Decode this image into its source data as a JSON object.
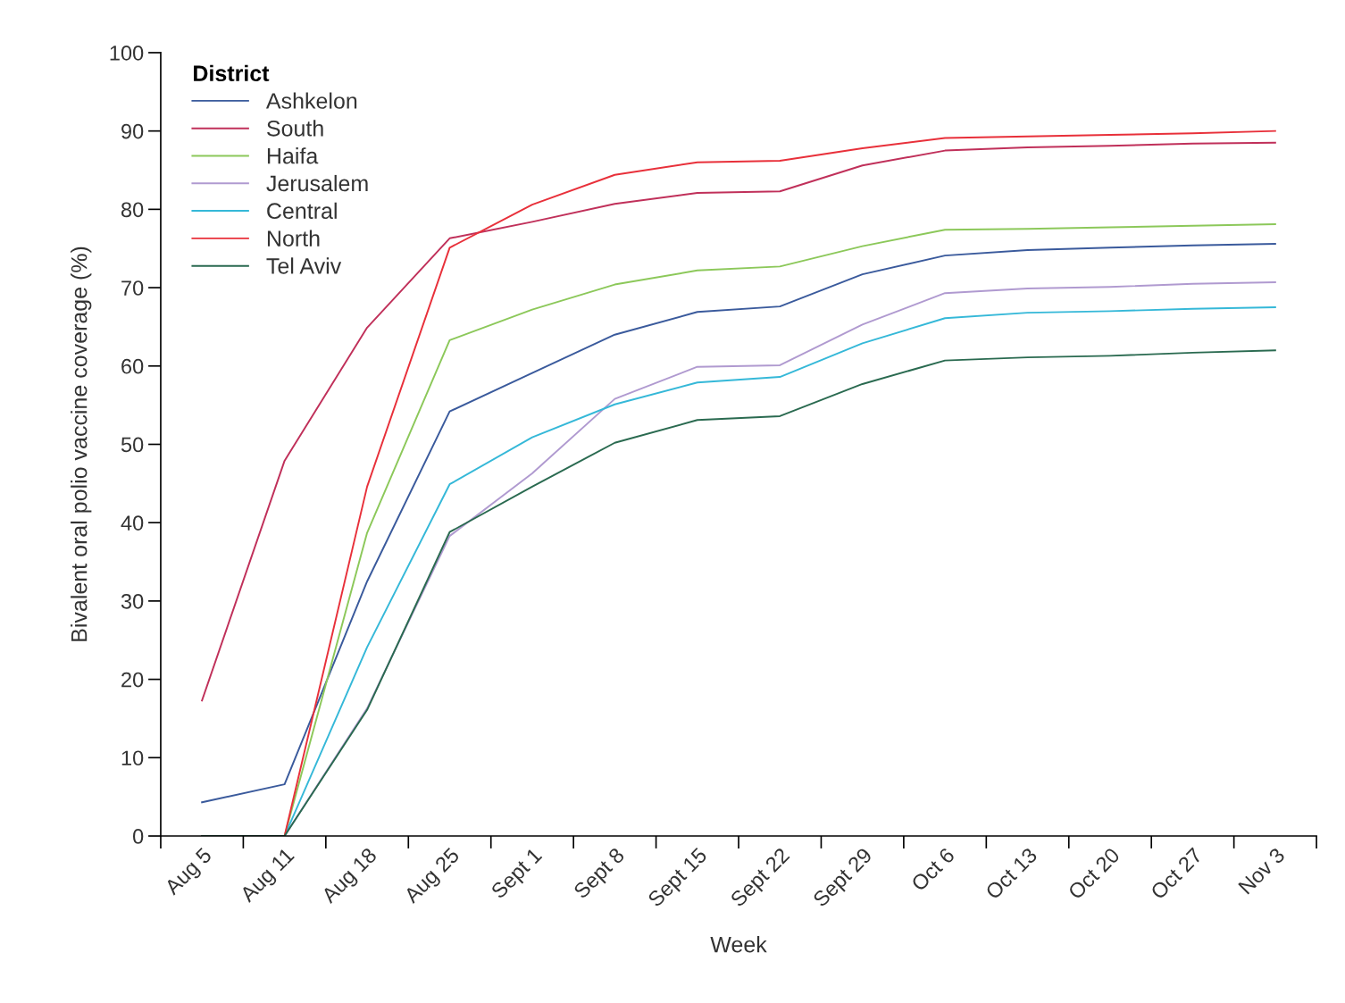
{
  "chart_data": {
    "type": "line",
    "xlabel": "Week",
    "ylabel": "Bivalent oral polio vaccine coverage (%)",
    "legend_title": "District",
    "legend": "top left",
    "grid": false,
    "marker": "none",
    "line_style": "solid",
    "categories": [
      "Aug 5",
      "Aug 11",
      "Aug 18",
      "Aug 25",
      "Sept 1",
      "Sept 8",
      "Sept 15",
      "Sept 22",
      "Sept 29",
      "Oct 6",
      "Oct 13",
      "Oct 20",
      "Oct 27",
      "Nov 3"
    ],
    "ylim": [
      0,
      100
    ],
    "yticks": [
      0,
      10,
      20,
      30,
      40,
      50,
      60,
      70,
      80,
      90,
      100
    ],
    "series": [
      {
        "name": "Ashkelon",
        "color": "#3a5a9c",
        "values": [
          4.3,
          6.6,
          32.5,
          54.2,
          59.1,
          64.0,
          66.9,
          67.6,
          71.7,
          74.1,
          74.8,
          75.1,
          75.4,
          75.6
        ]
      },
      {
        "name": "South",
        "color": "#c0305a",
        "values": [
          17.3,
          47.9,
          64.9,
          76.3,
          78.4,
          80.7,
          82.1,
          82.3,
          85.6,
          87.5,
          87.9,
          88.1,
          88.4,
          88.5
        ]
      },
      {
        "name": "Haifa",
        "color": "#8cc85a",
        "values": [
          0,
          0,
          38.7,
          63.3,
          67.2,
          70.4,
          72.2,
          72.7,
          75.3,
          77.4,
          77.5,
          77.7,
          77.9,
          78.1
        ]
      },
      {
        "name": "Jerusalem",
        "color": "#b09ad0",
        "values": [
          0,
          0,
          16.3,
          38.3,
          46.3,
          55.8,
          59.9,
          60.1,
          65.3,
          69.3,
          69.9,
          70.1,
          70.5,
          70.7
        ]
      },
      {
        "name": "Central",
        "color": "#35b8d8",
        "values": [
          0,
          0,
          24.1,
          44.9,
          50.9,
          55.1,
          57.9,
          58.6,
          62.9,
          66.1,
          66.8,
          67.0,
          67.3,
          67.5
        ]
      },
      {
        "name": "North",
        "color": "#e8303a",
        "values": [
          0,
          0,
          44.6,
          75.1,
          80.6,
          84.4,
          86.0,
          86.2,
          87.8,
          89.1,
          89.3,
          89.5,
          89.7,
          90.0
        ]
      },
      {
        "name": "Tel Aviv",
        "color": "#2a6a50",
        "values": [
          0,
          0,
          16.1,
          38.8,
          44.6,
          50.2,
          53.1,
          53.6,
          57.7,
          60.7,
          61.1,
          61.3,
          61.7,
          62.0
        ]
      }
    ]
  }
}
